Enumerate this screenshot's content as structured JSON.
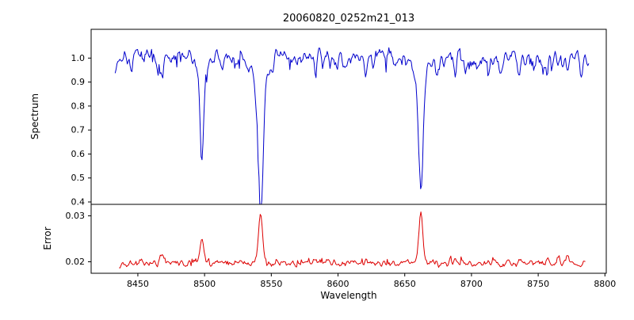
{
  "title": "20060820_0252m21_013",
  "chart_data": [
    {
      "type": "line",
      "panel": "spectrum",
      "title": "20060820_0252m21_013",
      "ylabel": "Spectrum",
      "color": "#0000cc",
      "xlim": [
        8415,
        8801
      ],
      "ylim": [
        0.39,
        1.12
      ],
      "yticks": [
        0.4,
        0.5,
        0.6,
        0.7,
        0.8,
        0.9,
        1.0
      ],
      "yticklabels": [
        "0.4",
        "0.5",
        "0.6",
        "0.7",
        "0.8",
        "0.9",
        "1.0"
      ],
      "x_range": [
        8433,
        8788
      ],
      "x_step": 0.7,
      "seed": 7,
      "base": 1.0,
      "noise_amp": 0.05,
      "noise_ramp": 0.7,
      "spike_prob": 0.05,
      "spike_amp": 0.05,
      "absorption_lines": [
        {
          "center": 8498.0,
          "depth": 0.39,
          "sigma": 1.3,
          "wing_depth": 0.04,
          "wing_sigma": 4
        },
        {
          "center": 8542.1,
          "depth": 0.49,
          "sigma": 2.0,
          "wing_depth": 0.1,
          "wing_sigma": 6
        },
        {
          "center": 8662.1,
          "depth": 0.49,
          "sigma": 1.7,
          "wing_depth": 0.08,
          "wing_sigma": 5
        }
      ],
      "minor_lines": [
        {
          "c": 8433,
          "d": 0.05
        },
        {
          "c": 8445,
          "d": 0.04
        },
        {
          "c": 8468,
          "d": 0.09
        },
        {
          "c": 8475,
          "d": 0.04
        },
        {
          "c": 8513,
          "d": 0.05
        },
        {
          "c": 8525,
          "d": 0.04
        },
        {
          "c": 8583,
          "d": 0.05
        },
        {
          "c": 8598,
          "d": 0.04
        },
        {
          "c": 8610,
          "d": 0.04
        },
        {
          "c": 8621,
          "d": 0.05
        },
        {
          "c": 8648,
          "d": 0.04
        },
        {
          "c": 8674,
          "d": 0.05
        },
        {
          "c": 8688,
          "d": 0.09
        },
        {
          "c": 8700,
          "d": 0.05
        },
        {
          "c": 8713,
          "d": 0.07
        },
        {
          "c": 8722,
          "d": 0.05
        },
        {
          "c": 8736,
          "d": 0.06
        },
        {
          "c": 8747,
          "d": 0.05
        },
        {
          "c": 8757,
          "d": 0.06
        },
        {
          "c": 8772,
          "d": 0.07
        },
        {
          "c": 8782,
          "d": 0.05
        }
      ]
    },
    {
      "type": "line",
      "panel": "error",
      "ylabel": "Error",
      "xlabel": "Wavelength",
      "color": "#dd0000",
      "xlim": [
        8415,
        8801
      ],
      "ylim": [
        0.0175,
        0.0325
      ],
      "yticks": [
        0.02,
        0.03
      ],
      "yticklabels": [
        "0.02",
        "0.03"
      ],
      "xticks": [
        8450,
        8500,
        8550,
        8600,
        8650,
        8700,
        8750,
        8800
      ],
      "xticklabels": [
        "8450",
        "8500",
        "8550",
        "8600",
        "8650",
        "8700",
        "8750",
        "8800"
      ],
      "x_range": [
        8436,
        8786
      ],
      "x_step": 0.7,
      "seed": 13,
      "base": 0.0197,
      "noise_amp": 0.0013,
      "spike_prob": 0.05,
      "spike_amp": -0.0012,
      "peaks": [
        {
          "c": 8433,
          "h": 0.0013,
          "w": 1.2
        },
        {
          "c": 8445,
          "h": 0.0008,
          "w": 1.0
        },
        {
          "c": 8468,
          "h": 0.0018,
          "w": 1.2
        },
        {
          "c": 8498,
          "h": 0.0055,
          "w": 1.4
        },
        {
          "c": 8513,
          "h": 0.0008,
          "w": 1.0
        },
        {
          "c": 8542,
          "h": 0.0105,
          "w": 1.6
        },
        {
          "c": 8583,
          "h": 0.0006,
          "w": 1.0
        },
        {
          "c": 8621,
          "h": 0.0006,
          "w": 1.0
        },
        {
          "c": 8662,
          "h": 0.0118,
          "w": 1.5
        },
        {
          "c": 8688,
          "h": 0.0009,
          "w": 1.0
        },
        {
          "c": 8713,
          "h": 0.0008,
          "w": 1.0
        },
        {
          "c": 8736,
          "h": 0.0008,
          "w": 1.0
        },
        {
          "c": 8757,
          "h": 0.0009,
          "w": 1.0
        },
        {
          "c": 8765,
          "h": 0.0012,
          "w": 1.0
        },
        {
          "c": 8772,
          "h": 0.0012,
          "w": 1.0
        }
      ]
    }
  ]
}
